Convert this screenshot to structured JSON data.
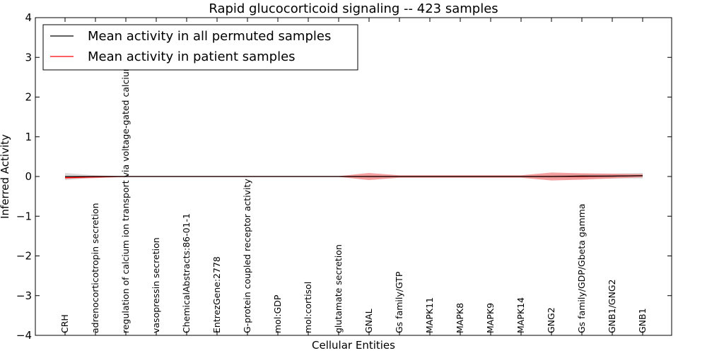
{
  "chart_data": {
    "type": "line",
    "title": "Rapid glucocorticoid signaling -- 423 samples",
    "xlabel": "Cellular Entities",
    "ylabel": "Inferred Activity",
    "ylim": [
      -4,
      4
    ],
    "yticks": [
      {
        "value": 4,
        "label": "4"
      },
      {
        "value": 3,
        "label": "3"
      },
      {
        "value": 2,
        "label": "2"
      },
      {
        "value": 1,
        "label": "1"
      },
      {
        "value": 0,
        "label": "0"
      },
      {
        "value": -1,
        "label": "−1"
      },
      {
        "value": -2,
        "label": "−2"
      },
      {
        "value": -3,
        "label": "−3"
      },
      {
        "value": -4,
        "label": "−4"
      }
    ],
    "categories": [
      "CRH",
      "adrenocorticotropin secretion",
      "regulation of calcium ion transport via voltage-gated calcium channel",
      "vasopressin secretion",
      "ChemicalAbstracts:86-01-1",
      "EntrezGene:2778",
      "G-protein coupled receptor activity",
      "mol:GDP",
      "mol:cortisol",
      "glutamate secretion",
      "GNAL",
      "Gs family/GTP",
      "MAPK11",
      "MAPK8",
      "MAPK9",
      "MAPK14",
      "GNG2",
      "Gs family/GDP/Gbeta gamma",
      "GNB1/GNG2",
      "GNB1"
    ],
    "legend_position": "top-left",
    "series": [
      {
        "name": "Mean activity in all permuted samples",
        "color": "#000000",
        "fill_color": "#c8c8c8",
        "values": [
          0.0,
          0.0,
          0.0,
          0.0,
          0.0,
          0.0,
          0.0,
          0.0,
          0.0,
          0.0,
          0.0,
          0.0,
          0.0,
          0.0,
          0.0,
          0.0,
          0.0,
          0.01,
          0.01,
          0.02
        ],
        "spread": [
          0.09,
          0.03,
          0.01,
          0.01,
          0.01,
          0.01,
          0.01,
          0.01,
          0.01,
          0.01,
          0.03,
          0.02,
          0.02,
          0.02,
          0.02,
          0.02,
          0.05,
          0.06,
          0.06,
          0.07
        ]
      },
      {
        "name": "Mean activity in patient samples",
        "color": "#ff0000",
        "fill_color": "#f08080",
        "values": [
          -0.03,
          -0.01,
          0.0,
          0.0,
          0.0,
          0.0,
          0.0,
          0.0,
          0.0,
          0.0,
          0.0,
          0.0,
          0.0,
          0.0,
          0.0,
          0.0,
          0.0,
          0.0,
          0.01,
          0.02
        ],
        "spread": [
          0.03,
          0.03,
          0.01,
          0.01,
          0.01,
          0.01,
          0.01,
          0.01,
          0.01,
          0.01,
          0.09,
          0.03,
          0.03,
          0.03,
          0.03,
          0.03,
          0.1,
          0.08,
          0.06,
          0.04
        ]
      }
    ]
  }
}
